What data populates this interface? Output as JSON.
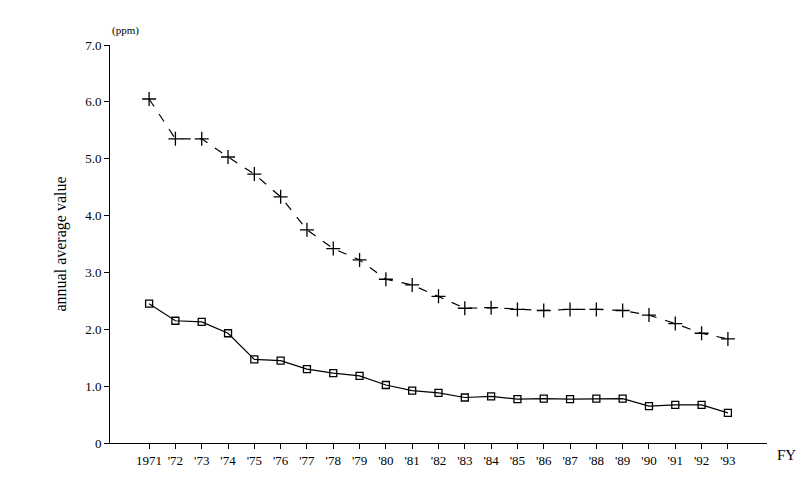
{
  "chart_data": {
    "type": "line",
    "ylabel": "annual average value",
    "xlabel": "FY",
    "annotations": [
      "(ppm)"
    ],
    "categories": [
      "1971",
      "'72",
      "'73",
      "'74",
      "'75",
      "'76",
      "'77",
      "'78",
      "'79",
      "'80",
      "'81",
      "'82",
      "'83",
      "'84",
      "'85",
      "'86",
      "'87",
      "'88",
      "'89",
      "'90",
      "'91",
      "'92",
      "'93"
    ],
    "series": [
      {
        "color": "#000000",
        "line_style": "dashed",
        "marker": "cross",
        "values": [
          6.05,
          5.35,
          5.35,
          5.03,
          4.73,
          4.33,
          3.75,
          3.42,
          3.22,
          2.88,
          2.78,
          2.58,
          2.37,
          2.38,
          2.35,
          2.33,
          2.35,
          2.35,
          2.33,
          2.25,
          2.1,
          1.93,
          1.83
        ]
      },
      {
        "color": "#000000",
        "line_style": "solid",
        "marker": "square",
        "values": [
          2.45,
          2.15,
          2.13,
          1.93,
          1.47,
          1.45,
          1.3,
          1.23,
          1.18,
          1.02,
          0.92,
          0.88,
          0.8,
          0.82,
          0.77,
          0.78,
          0.77,
          0.78,
          0.78,
          0.65,
          0.67,
          0.67,
          0.53
        ]
      }
    ],
    "ylim": [
      0,
      7
    ],
    "yticks": [
      0,
      {
        "value": 1,
        "label": "1.0"
      },
      {
        "value": 2,
        "label": "2.0"
      },
      {
        "value": 3,
        "label": "3.0"
      },
      {
        "value": 4,
        "label": "4.0"
      },
      {
        "value": 5,
        "label": "5.0"
      },
      {
        "value": 6,
        "label": "6.0"
      },
      {
        "value": 7,
        "label": "7.0"
      }
    ],
    "grid": false
  }
}
